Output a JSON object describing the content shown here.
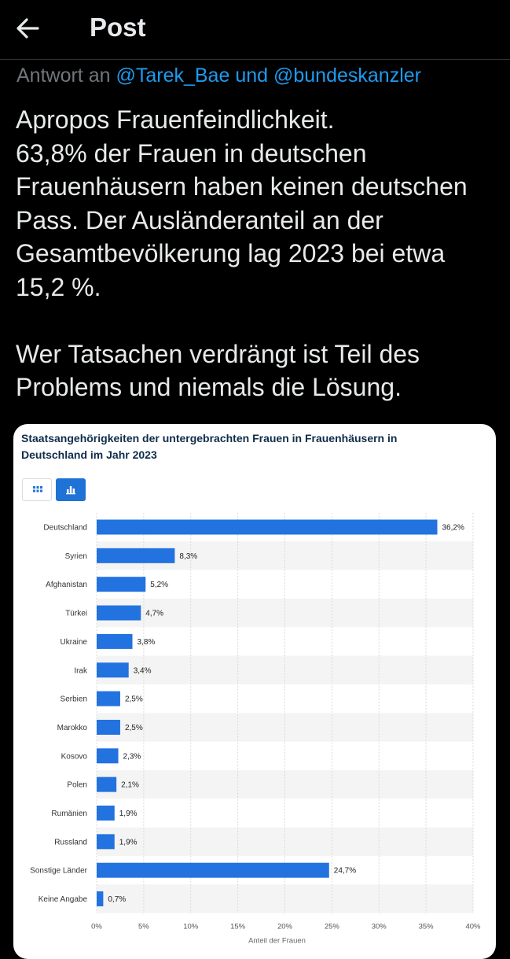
{
  "header": {
    "title": "Post"
  },
  "reply": {
    "prefix": "Antwort an",
    "mention1": "@Tarek_Bae",
    "joiner": "und",
    "mention2": "@bundeskanzler"
  },
  "tweet": {
    "lines": [
      "Apropos Frauenfeindlichkeit.",
      "63,8% der Frauen in deutschen",
      "Frauenhäusern haben keinen deutschen",
      "Pass. Der Ausländeranteil an der",
      "Gesamtbevölkerung lag 2023 bei etwa",
      "15,2 %.",
      "",
      "Wer Tatsachen verdrängt ist Teil des",
      "Problems und niemals die Lösung."
    ]
  },
  "colors": {
    "bar": "#2272e0",
    "mention": "#1d9bf0",
    "title": "#0f2c4a"
  },
  "chart_data": {
    "type": "bar",
    "orientation": "horizontal",
    "title": "Staatsangehörigkeiten der untergebrachten Frauen in Frauenhäusern in Deutschland im Jahr 2023",
    "categories": [
      "Deutschland",
      "Syrien",
      "Afghanistan",
      "Türkei",
      "Ukraine",
      "Irak",
      "Serbien",
      "Marokko",
      "Kosovo",
      "Polen",
      "Rumänien",
      "Russland",
      "Sonstige Länder",
      "Keine Angabe"
    ],
    "values": [
      36.2,
      8.3,
      5.2,
      4.7,
      3.8,
      3.4,
      2.5,
      2.5,
      2.3,
      2.1,
      1.9,
      1.9,
      24.7,
      0.7
    ],
    "value_labels": [
      "36,2%",
      "8,3%",
      "5,2%",
      "4,7%",
      "3,8%",
      "3,4%",
      "2,5%",
      "2,5%",
      "2,3%",
      "2,1%",
      "1,9%",
      "1,9%",
      "24,7%",
      "0,7%"
    ],
    "xticks": [
      "0%",
      "5%",
      "10%",
      "15%",
      "20%",
      "25%",
      "30%",
      "35%",
      "40%"
    ],
    "xlim": [
      0,
      40
    ],
    "xlabel": "Anteil der Frauen",
    "grid": true,
    "alternating_row_shading": true
  }
}
